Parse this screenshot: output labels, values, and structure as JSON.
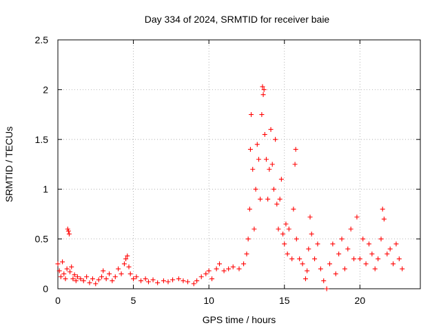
{
  "chart_data": {
    "type": "scatter",
    "title": "Day 334 of 2024, SRMTID for receiver baie",
    "xlabel": "GPS time / hours",
    "ylabel": "SRMTID / TECUs",
    "xlim": [
      0,
      24
    ],
    "ylim": [
      0,
      2.5
    ],
    "xticks": [
      0,
      5,
      10,
      15,
      20
    ],
    "yticks": [
      0,
      0.5,
      1,
      1.5,
      2,
      2.5
    ],
    "ytick_labels": [
      "0",
      "0.5",
      "1",
      "1.5",
      "2",
      "2.5"
    ],
    "grid": true,
    "marker": "+",
    "color": "#ff0000",
    "series": [
      {
        "name": "SRMTID",
        "points": [
          [
            0.0,
            0.25
          ],
          [
            0.1,
            0.18
          ],
          [
            0.2,
            0.12
          ],
          [
            0.3,
            0.27
          ],
          [
            0.4,
            0.15
          ],
          [
            0.5,
            0.1
          ],
          [
            0.6,
            0.2
          ],
          [
            0.65,
            0.6
          ],
          [
            0.7,
            0.58
          ],
          [
            0.75,
            0.55
          ],
          [
            0.8,
            0.17
          ],
          [
            0.9,
            0.22
          ],
          [
            1.0,
            0.1
          ],
          [
            1.1,
            0.14
          ],
          [
            1.2,
            0.08
          ],
          [
            1.3,
            0.12
          ],
          [
            1.5,
            0.1
          ],
          [
            1.7,
            0.08
          ],
          [
            1.9,
            0.12
          ],
          [
            2.1,
            0.06
          ],
          [
            2.3,
            0.1
          ],
          [
            2.5,
            0.05
          ],
          [
            2.7,
            0.09
          ],
          [
            2.9,
            0.12
          ],
          [
            3.0,
            0.18
          ],
          [
            3.2,
            0.1
          ],
          [
            3.4,
            0.15
          ],
          [
            3.6,
            0.08
          ],
          [
            3.8,
            0.12
          ],
          [
            4.0,
            0.2
          ],
          [
            4.2,
            0.15
          ],
          [
            4.4,
            0.25
          ],
          [
            4.5,
            0.3
          ],
          [
            4.6,
            0.33
          ],
          [
            4.7,
            0.22
          ],
          [
            4.8,
            0.15
          ],
          [
            5.0,
            0.1
          ],
          [
            5.2,
            0.12
          ],
          [
            5.5,
            0.08
          ],
          [
            5.8,
            0.1
          ],
          [
            6.0,
            0.07
          ],
          [
            6.3,
            0.09
          ],
          [
            6.6,
            0.06
          ],
          [
            7.0,
            0.08
          ],
          [
            7.3,
            0.07
          ],
          [
            7.6,
            0.09
          ],
          [
            8.0,
            0.1
          ],
          [
            8.3,
            0.08
          ],
          [
            8.6,
            0.07
          ],
          [
            9.0,
            0.05
          ],
          [
            9.2,
            0.08
          ],
          [
            9.5,
            0.12
          ],
          [
            9.8,
            0.15
          ],
          [
            10.0,
            0.18
          ],
          [
            10.2,
            0.1
          ],
          [
            10.5,
            0.2
          ],
          [
            10.7,
            0.25
          ],
          [
            11.0,
            0.18
          ],
          [
            11.3,
            0.2
          ],
          [
            11.6,
            0.22
          ],
          [
            12.0,
            0.2
          ],
          [
            12.3,
            0.25
          ],
          [
            12.5,
            0.35
          ],
          [
            12.6,
            0.5
          ],
          [
            12.7,
            0.8
          ],
          [
            12.75,
            1.4
          ],
          [
            12.8,
            1.75
          ],
          [
            12.9,
            1.2
          ],
          [
            13.0,
            0.6
          ],
          [
            13.1,
            1.0
          ],
          [
            13.2,
            1.45
          ],
          [
            13.3,
            1.3
          ],
          [
            13.4,
            0.9
          ],
          [
            13.5,
            1.75
          ],
          [
            13.55,
            2.03
          ],
          [
            13.6,
            1.95
          ],
          [
            13.65,
            2.0
          ],
          [
            13.7,
            1.55
          ],
          [
            13.8,
            1.3
          ],
          [
            13.9,
            0.9
          ],
          [
            14.0,
            1.2
          ],
          [
            14.1,
            1.6
          ],
          [
            14.2,
            1.25
          ],
          [
            14.3,
            1.0
          ],
          [
            14.4,
            1.5
          ],
          [
            14.5,
            0.85
          ],
          [
            14.6,
            0.6
          ],
          [
            14.7,
            0.9
          ],
          [
            14.8,
            1.1
          ],
          [
            14.9,
            0.55
          ],
          [
            15.0,
            0.45
          ],
          [
            15.1,
            0.65
          ],
          [
            15.2,
            0.35
          ],
          [
            15.3,
            0.6
          ],
          [
            15.5,
            0.3
          ],
          [
            15.6,
            0.8
          ],
          [
            15.7,
            1.25
          ],
          [
            15.75,
            1.4
          ],
          [
            15.8,
            0.5
          ],
          [
            16.0,
            0.3
          ],
          [
            16.2,
            0.25
          ],
          [
            16.4,
            0.1
          ],
          [
            16.5,
            0.18
          ],
          [
            16.6,
            0.4
          ],
          [
            16.7,
            0.72
          ],
          [
            16.8,
            0.55
          ],
          [
            17.0,
            0.3
          ],
          [
            17.2,
            0.45
          ],
          [
            17.4,
            0.2
          ],
          [
            17.6,
            0.08
          ],
          [
            17.8,
            0.0
          ],
          [
            18.0,
            0.25
          ],
          [
            18.2,
            0.45
          ],
          [
            18.4,
            0.15
          ],
          [
            18.6,
            0.35
          ],
          [
            18.8,
            0.5
          ],
          [
            19.0,
            0.2
          ],
          [
            19.2,
            0.4
          ],
          [
            19.4,
            0.6
          ],
          [
            19.6,
            0.3
          ],
          [
            19.8,
            0.72
          ],
          [
            20.0,
            0.3
          ],
          [
            20.2,
            0.5
          ],
          [
            20.4,
            0.25
          ],
          [
            20.6,
            0.45
          ],
          [
            20.8,
            0.35
          ],
          [
            21.0,
            0.2
          ],
          [
            21.2,
            0.3
          ],
          [
            21.4,
            0.5
          ],
          [
            21.5,
            0.8
          ],
          [
            21.6,
            0.7
          ],
          [
            21.8,
            0.35
          ],
          [
            22.0,
            0.4
          ],
          [
            22.2,
            0.25
          ],
          [
            22.4,
            0.45
          ],
          [
            22.6,
            0.3
          ],
          [
            22.8,
            0.2
          ]
        ]
      }
    ]
  }
}
